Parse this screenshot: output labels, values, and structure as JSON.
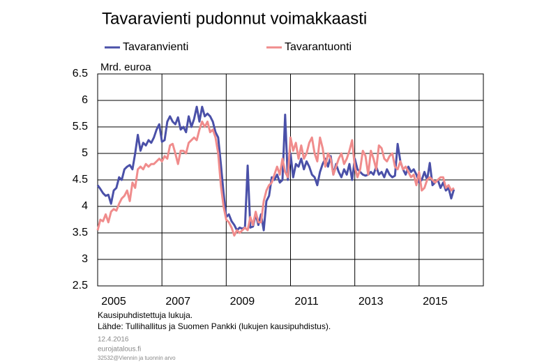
{
  "chart_data": {
    "type": "line",
    "title": "Tavaravienti pudonnut voimakkaasti",
    "ylabel": "Mrd. euroa",
    "notes": [
      "Kausipuhdistettuja lukuja.",
      "Lähde: Tullihallitus ja Suomen Pankki (lukujen kausipuhdistus)."
    ],
    "footer": [
      "12.4.2016",
      "eurojatalous.fi",
      "32532@Viennin ja tuonnin arvo"
    ],
    "xlim": [
      2005,
      2017
    ],
    "xticks": [
      {
        "value": 2005.5,
        "label": "2005"
      },
      {
        "value": 2007.5,
        "label": "2007"
      },
      {
        "value": 2009.5,
        "label": "2009"
      },
      {
        "value": 2011.5,
        "label": "2011"
      },
      {
        "value": 2013.5,
        "label": "2013"
      },
      {
        "value": 2015.5,
        "label": "2015"
      }
    ],
    "xgrid": [
      2007,
      2009,
      2011,
      2013,
      2015
    ],
    "ylim": [
      2.5,
      6.5
    ],
    "yticks": [
      2.5,
      3,
      3.5,
      4,
      4.5,
      5,
      5.5,
      6,
      6.5
    ],
    "grid": true,
    "x": [
      2005,
      2005.083,
      2005.167,
      2005.25,
      2005.333,
      2005.417,
      2005.5,
      2005.583,
      2005.667,
      2005.75,
      2005.833,
      2005.917,
      2006,
      2006.083,
      2006.167,
      2006.25,
      2006.333,
      2006.417,
      2006.5,
      2006.583,
      2006.667,
      2006.75,
      2006.833,
      2006.917,
      2007,
      2007.083,
      2007.167,
      2007.25,
      2007.333,
      2007.417,
      2007.5,
      2007.583,
      2007.667,
      2007.75,
      2007.833,
      2007.917,
      2008,
      2008.083,
      2008.167,
      2008.25,
      2008.333,
      2008.417,
      2008.5,
      2008.583,
      2008.667,
      2008.75,
      2008.833,
      2008.917,
      2009,
      2009.083,
      2009.167,
      2009.25,
      2009.333,
      2009.417,
      2009.5,
      2009.583,
      2009.667,
      2009.75,
      2009.833,
      2009.917,
      2010,
      2010.083,
      2010.167,
      2010.25,
      2010.333,
      2010.417,
      2010.5,
      2010.583,
      2010.667,
      2010.75,
      2010.833,
      2010.917,
      2011,
      2011.083,
      2011.167,
      2011.25,
      2011.333,
      2011.417,
      2011.5,
      2011.583,
      2011.667,
      2011.75,
      2011.833,
      2011.917,
      2012,
      2012.083,
      2012.167,
      2012.25,
      2012.333,
      2012.417,
      2012.5,
      2012.583,
      2012.667,
      2012.75,
      2012.833,
      2012.917,
      2013,
      2013.083,
      2013.167,
      2013.25,
      2013.333,
      2013.417,
      2013.5,
      2013.583,
      2013.667,
      2013.75,
      2013.833,
      2013.917,
      2014,
      2014.083,
      2014.167,
      2014.25,
      2014.333,
      2014.417,
      2014.5,
      2014.583,
      2014.667,
      2014.75,
      2014.833,
      2014.917,
      2015,
      2015.083,
      2015.167,
      2015.25,
      2015.333,
      2015.417,
      2015.5,
      2015.583,
      2015.667,
      2015.75,
      2015.833,
      2015.917,
      2016,
      2016.083
    ],
    "series": [
      {
        "name": "Tavaranvienti",
        "color": "#4a50a8",
        "values": [
          4.4,
          4.33,
          4.25,
          4.2,
          4.22,
          4.05,
          4.3,
          4.35,
          4.55,
          4.5,
          4.7,
          4.75,
          4.78,
          4.7,
          5.0,
          5.35,
          5.05,
          5.2,
          5.15,
          5.25,
          5.2,
          5.3,
          5.45,
          5.55,
          5.22,
          5.25,
          5.6,
          5.7,
          5.6,
          5.55,
          5.68,
          5.45,
          5.5,
          5.4,
          5.7,
          5.5,
          5.65,
          5.88,
          5.6,
          5.88,
          5.7,
          5.75,
          5.7,
          5.6,
          5.4,
          5.3,
          4.8,
          4.25,
          3.8,
          3.85,
          3.72,
          3.65,
          3.55,
          3.6,
          3.58,
          3.6,
          4.77,
          3.6,
          3.62,
          3.85,
          3.65,
          3.85,
          3.55,
          4.1,
          4.2,
          4.55,
          4.5,
          4.6,
          4.45,
          4.5,
          5.73,
          4.5,
          5.0,
          4.55,
          4.8,
          4.75,
          4.9,
          4.7,
          4.85,
          4.75,
          4.6,
          4.55,
          4.4,
          4.65,
          4.8,
          4.9,
          4.75,
          4.95,
          4.6,
          4.8,
          4.65,
          4.55,
          4.7,
          4.6,
          4.8,
          4.5,
          4.9,
          4.7,
          4.65,
          4.6,
          4.58,
          4.6,
          4.65,
          4.6,
          4.75,
          4.6,
          4.65,
          4.55,
          4.7,
          4.6,
          4.55,
          4.58,
          5.18,
          4.85,
          4.7,
          4.6,
          4.75,
          4.65,
          4.7,
          4.6,
          4.45,
          4.5,
          4.65,
          4.5,
          4.82,
          4.4,
          4.45,
          4.5,
          4.35,
          4.45,
          4.3,
          4.35,
          4.15,
          4.32
        ]
      },
      {
        "name": "Tavarantuonti",
        "color": "#f08c8c",
        "values": [
          3.55,
          3.75,
          3.72,
          3.85,
          3.7,
          3.9,
          3.95,
          3.92,
          4.05,
          4.15,
          4.2,
          4.3,
          4.1,
          4.45,
          4.35,
          4.7,
          4.75,
          4.7,
          4.8,
          4.75,
          4.8,
          4.8,
          4.85,
          4.9,
          4.85,
          4.95,
          4.9,
          5.15,
          5.18,
          5.0,
          4.8,
          5.05,
          5.05,
          5.0,
          5.2,
          5.25,
          5.3,
          5.25,
          5.45,
          5.6,
          5.5,
          5.6,
          5.4,
          5.45,
          5.3,
          5.0,
          4.4,
          4.0,
          3.75,
          3.7,
          3.6,
          3.45,
          3.55,
          3.5,
          3.55,
          3.6,
          3.55,
          3.8,
          3.65,
          3.9,
          3.7,
          3.7,
          4.1,
          4.3,
          4.4,
          4.45,
          4.6,
          4.75,
          4.6,
          4.9,
          4.65,
          4.55,
          5.3,
          5.05,
          5.2,
          4.9,
          5.15,
          4.9,
          5.0,
          5.2,
          5.3,
          5.0,
          4.85,
          5.3,
          5.1,
          4.75,
          5.0,
          4.9,
          4.6,
          4.75,
          4.9,
          5.0,
          4.8,
          4.9,
          5.05,
          5.25,
          4.75,
          4.55,
          4.7,
          5.05,
          4.95,
          4.6,
          5.05,
          4.9,
          4.7,
          5.15,
          5.1,
          4.9,
          4.85,
          4.95,
          5.0,
          4.75,
          4.7,
          4.85,
          4.7,
          4.75,
          4.65,
          4.55,
          4.6,
          4.4,
          4.65,
          4.3,
          4.35,
          4.5,
          4.55,
          4.5,
          4.45,
          4.5,
          4.55,
          4.55,
          4.35,
          4.4,
          4.3,
          4.35
        ]
      }
    ]
  }
}
